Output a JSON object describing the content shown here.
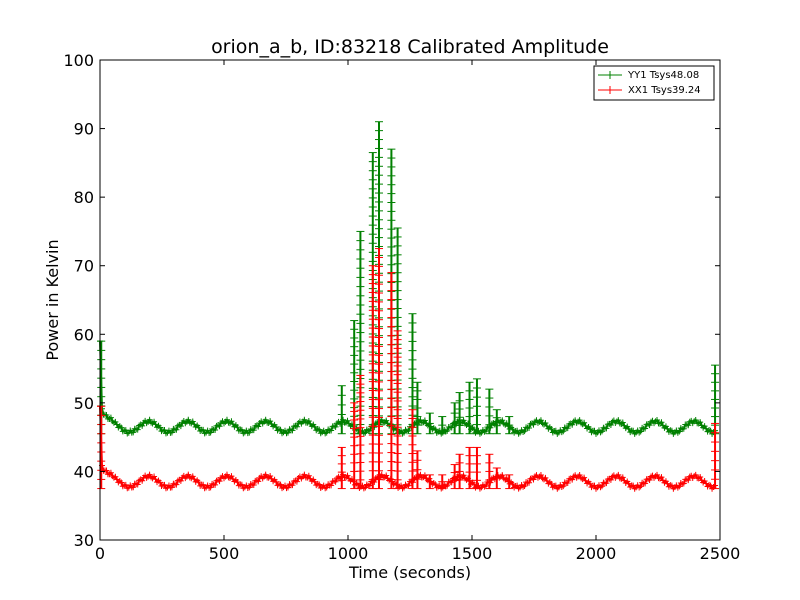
{
  "chart_data": {
    "type": "line",
    "title": "orion_a_b, ID:83218 Calibrated Amplitude",
    "xlabel": "Time (seconds)",
    "ylabel": "Power in Kelvin",
    "xlim": [
      0,
      2500
    ],
    "ylim": [
      30,
      100
    ],
    "x_ticks": [
      "0",
      "500",
      "1000",
      "1500",
      "2000",
      "2500"
    ],
    "y_ticks": [
      "30",
      "40",
      "50",
      "60",
      "70",
      "80",
      "90",
      "100"
    ],
    "grid": false,
    "legend": "top-right",
    "marker": "plus",
    "series": [
      {
        "name": "YY1 Tsys48.08",
        "color": "#008000",
        "baseline": 46.5,
        "start_value": 59,
        "end_spike": 55.5,
        "spikes": [
          {
            "x": 975,
            "y": 52.5
          },
          {
            "x": 1025,
            "y": 62
          },
          {
            "x": 1050,
            "y": 75
          },
          {
            "x": 1100,
            "y": 86.5
          },
          {
            "x": 1125,
            "y": 91
          },
          {
            "x": 1175,
            "y": 87
          },
          {
            "x": 1200,
            "y": 75.5
          },
          {
            "x": 1260,
            "y": 63
          },
          {
            "x": 1280,
            "y": 53
          },
          {
            "x": 1330,
            "y": 48.5
          },
          {
            "x": 1380,
            "y": 48
          },
          {
            "x": 1430,
            "y": 50
          },
          {
            "x": 1450,
            "y": 51.5
          },
          {
            "x": 1490,
            "y": 53
          },
          {
            "x": 1520,
            "y": 53.5
          },
          {
            "x": 1570,
            "y": 52
          },
          {
            "x": 1600,
            "y": 49
          },
          {
            "x": 1650,
            "y": 48
          }
        ]
      },
      {
        "name": "XX1 Tsys39.24",
        "color": "#ff0000",
        "baseline": 38.5,
        "start_value": 49.5,
        "end_spike": 47,
        "spikes": [
          {
            "x": 975,
            "y": 43.5
          },
          {
            "x": 1025,
            "y": 50
          },
          {
            "x": 1050,
            "y": 54
          },
          {
            "x": 1100,
            "y": 70
          },
          {
            "x": 1125,
            "y": 72.5
          },
          {
            "x": 1175,
            "y": 69
          },
          {
            "x": 1200,
            "y": 60.5
          },
          {
            "x": 1260,
            "y": 49
          },
          {
            "x": 1280,
            "y": 43
          },
          {
            "x": 1330,
            "y": 39.5
          },
          {
            "x": 1380,
            "y": 39.5
          },
          {
            "x": 1430,
            "y": 41
          },
          {
            "x": 1450,
            "y": 42.5
          },
          {
            "x": 1490,
            "y": 43.5
          },
          {
            "x": 1520,
            "y": 43.5
          },
          {
            "x": 1570,
            "y": 42.5
          },
          {
            "x": 1600,
            "y": 40.5
          },
          {
            "x": 1650,
            "y": 39.5
          }
        ]
      }
    ]
  }
}
